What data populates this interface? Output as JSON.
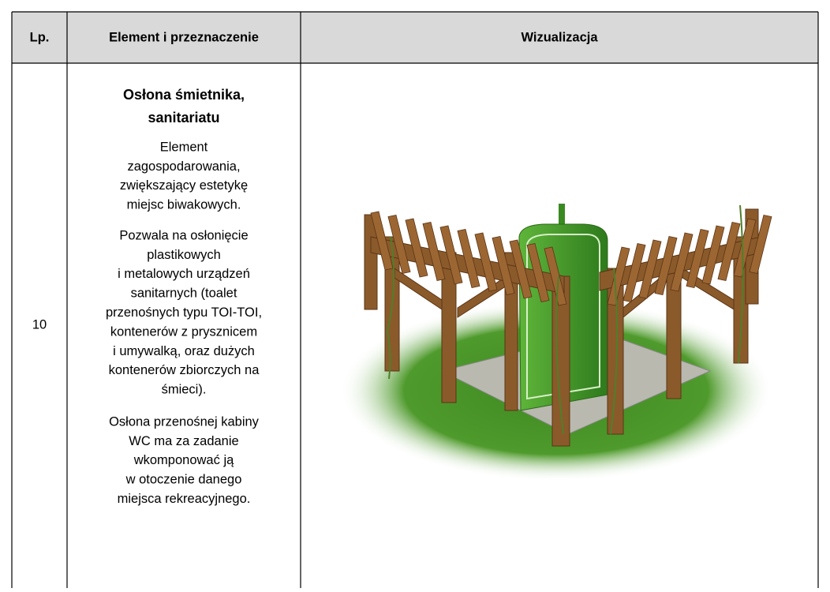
{
  "table": {
    "header": [
      "Lp.",
      "Element i przeznaczenie",
      "Wizualizacja"
    ],
    "rows": [
      {
        "lp": "10",
        "element": {
          "title": [
            "Osłona śmietnika,",
            "sanitariatu"
          ],
          "paragraphs": [
            [
              "Element",
              "zagospodarowania,",
              "zwiększający estetykę",
              "miejsc biwakowych."
            ],
            [
              "Pozwala na osłonięcie",
              "plastikowych",
              "i metalowych urządzeń",
              "sanitarnych (toalet",
              "przenośnych typu TOI-TOI,",
              "kontenerów z prysznicem",
              "i umywalką, oraz dużych",
              "kontenerów zbiorczych na",
              "śmieci)."
            ],
            [
              "Osłona przenośnej kabiny",
              "WC ma za zadanie",
              "wkomponować ją",
              "w otoczenie danego",
              "miejsca rekreacyjnego."
            ]
          ]
        }
      }
    ]
  }
}
